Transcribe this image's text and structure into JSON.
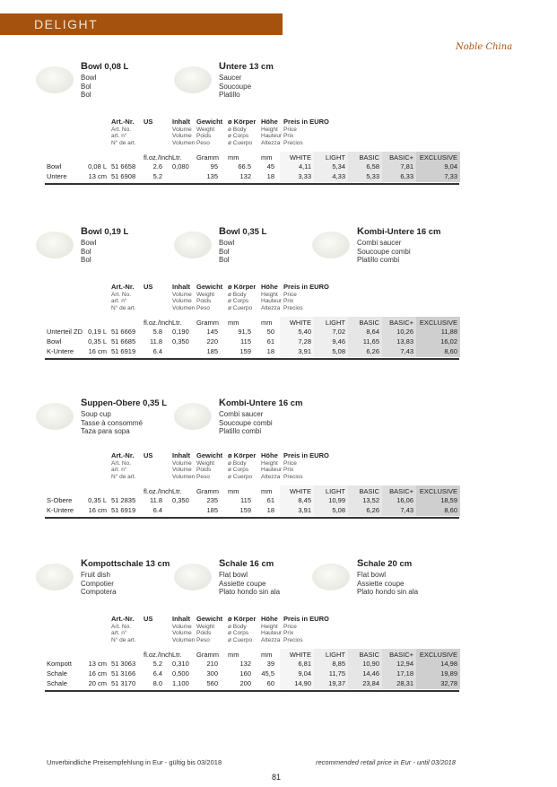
{
  "header": {
    "title": "DELIGHT",
    "brand": "Noble China",
    "brand_color": "#a5520f"
  },
  "table_headers": {
    "art": [
      "Art.-Nr.",
      "Art. No.",
      "art. n°",
      "N° de art."
    ],
    "us": [
      "US"
    ],
    "inhalt": [
      "Inhalt",
      "Volume",
      "Volume",
      "Volumen"
    ],
    "gewicht": [
      "Gewicht",
      "Weight",
      "Poids",
      "Peso"
    ],
    "koerper": [
      "ø Körper",
      "ø Body",
      "ø Corps",
      "ø Cuerpo"
    ],
    "hoehe": [
      "Höhe",
      "Height",
      "Hauteur",
      "Altezza"
    ],
    "preis": [
      "Preis in EURO",
      "Price",
      "Prix",
      "Precios"
    ],
    "units": [
      "fl.oz./Inch",
      "Ltr.",
      "Gramm",
      "mm",
      "mm",
      "WHITE",
      "LIGHT",
      "BASIC",
      "BASIC+",
      "EXCLUSIVE"
    ]
  },
  "sections": [
    {
      "products": [
        {
          "title": "Bowl 0,08 L",
          "sub": [
            "Bowl",
            "Bol",
            "Bol"
          ]
        },
        {
          "title": "Untere 13 cm",
          "sub": [
            "Saucer",
            "Soucoupe",
            "Platillo"
          ]
        }
      ],
      "rows": [
        [
          "Bowl",
          "0,08 L",
          "51 6658",
          "2.6",
          "0,080",
          "95",
          "66.5",
          "45",
          "4,11",
          "5,34",
          "6,58",
          "7,81",
          "9,04"
        ],
        [
          "Untere",
          "13 cm",
          "51 6908",
          "5.2",
          "",
          "135",
          "132",
          "18",
          "3,33",
          "4,33",
          "5,33",
          "6,33",
          "7,33"
        ]
      ]
    },
    {
      "products": [
        {
          "title": "Bowl 0,19 L",
          "sub": [
            "Bowl",
            "Bol",
            "Bol"
          ]
        },
        {
          "title": "Bowl 0,35 L",
          "sub": [
            "Bowl",
            "Bol",
            "Bol"
          ]
        },
        {
          "title": "Kombi-Untere 16 cm",
          "sub": [
            "Combi saucer",
            "Soucoupe combi",
            "Platillo combi"
          ]
        }
      ],
      "rows": [
        [
          "Unterteil ZD",
          "0,19 L",
          "51 6669",
          "5.8",
          "0,190",
          "145",
          "91,5",
          "50",
          "5,40",
          "7,02",
          "8,64",
          "10,26",
          "11,88"
        ],
        [
          "Bowl",
          "0,35 L",
          "51 6685",
          "11.8",
          "0,350",
          "220",
          "115",
          "61",
          "7,28",
          "9,46",
          "11,65",
          "13,83",
          "16,02"
        ],
        [
          "K-Untere",
          "16 cm",
          "51 6919",
          "6.4",
          "",
          "185",
          "159",
          "18",
          "3,91",
          "5,08",
          "6,26",
          "7,43",
          "8,60"
        ]
      ]
    },
    {
      "products": [
        {
          "title": "Suppen-Obere 0,35 L",
          "sub": [
            "Soup cup",
            "Tasse à consommé",
            "Taza para sopa"
          ]
        },
        {
          "title": "Kombi-Untere 16 cm",
          "sub": [
            "Combi saucer",
            "Soucoupe combi",
            "Platillo combi"
          ]
        }
      ],
      "rows": [
        [
          "S-Obere",
          "0,35 L",
          "51 2835",
          "11.8",
          "0,350",
          "235",
          "115",
          "61",
          "8,45",
          "10,99",
          "13,52",
          "16,06",
          "18,59"
        ],
        [
          "K-Untere",
          "16 cm",
          "51 6919",
          "6.4",
          "",
          "185",
          "159",
          "18",
          "3,91",
          "5,08",
          "6,26",
          "7,43",
          "8,60"
        ]
      ]
    },
    {
      "products": [
        {
          "title": "Kompottschale 13 cm",
          "sub": [
            "Fruit dish",
            "Compotier",
            "Compotera"
          ]
        },
        {
          "title": "Schale 16 cm",
          "sub": [
            "Flat bowl",
            "Assiette coupe",
            "Plato hondo sin ala"
          ]
        },
        {
          "title": "Schale 20 cm",
          "sub": [
            "Flat bowl",
            "Assiette coupe",
            "Plato hondo sin ala"
          ]
        }
      ],
      "rows": [
        [
          "Kompott",
          "13 cm",
          "51 3063",
          "5.2",
          "0,310",
          "210",
          "132",
          "39",
          "6,81",
          "8,85",
          "10,90",
          "12,94",
          "14,98"
        ],
        [
          "Schale",
          "16 cm",
          "51 3166",
          "6.4",
          "0,500",
          "300",
          "160",
          "45,5",
          "9,04",
          "11,75",
          "14,46",
          "17,18",
          "19,89"
        ],
        [
          "Schale",
          "20 cm",
          "51 3170",
          "8.0",
          "1,100",
          "560",
          "200",
          "60",
          "14,90",
          "19,37",
          "23,84",
          "28,31",
          "32,78"
        ]
      ]
    }
  ],
  "footer": {
    "left": "Unverbindliche Preisempfehlung in Eur - gültig bis 03/2018",
    "right": "recommended retail price in Eur - until 03/2018",
    "page": "81"
  }
}
